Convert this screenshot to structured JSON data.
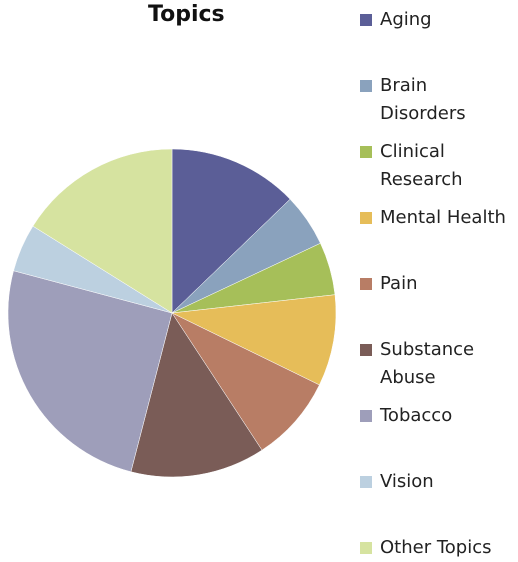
{
  "chart_data": {
    "type": "pie",
    "title": "Topics",
    "categories": [
      "Aging",
      "Brain\nDisorders",
      "Clinical\nResearch",
      "Mental Health",
      "Pain",
      "Substance\nAbuse",
      "Tobacco",
      "Vision",
      "Other Topics"
    ],
    "values": [
      13.5,
      5.5,
      5.5,
      9.5,
      9,
      14,
      26.5,
      5,
      17
    ],
    "colors": [
      "#5b5e97",
      "#8aa2bd",
      "#a6bf59",
      "#e6bd59",
      "#b87d65",
      "#7a5c57",
      "#9e9eba",
      "#bcd0e0",
      "#d6e3a0"
    ],
    "legend": "right",
    "start_angle_deg": 0,
    "direction": "clockwise"
  }
}
